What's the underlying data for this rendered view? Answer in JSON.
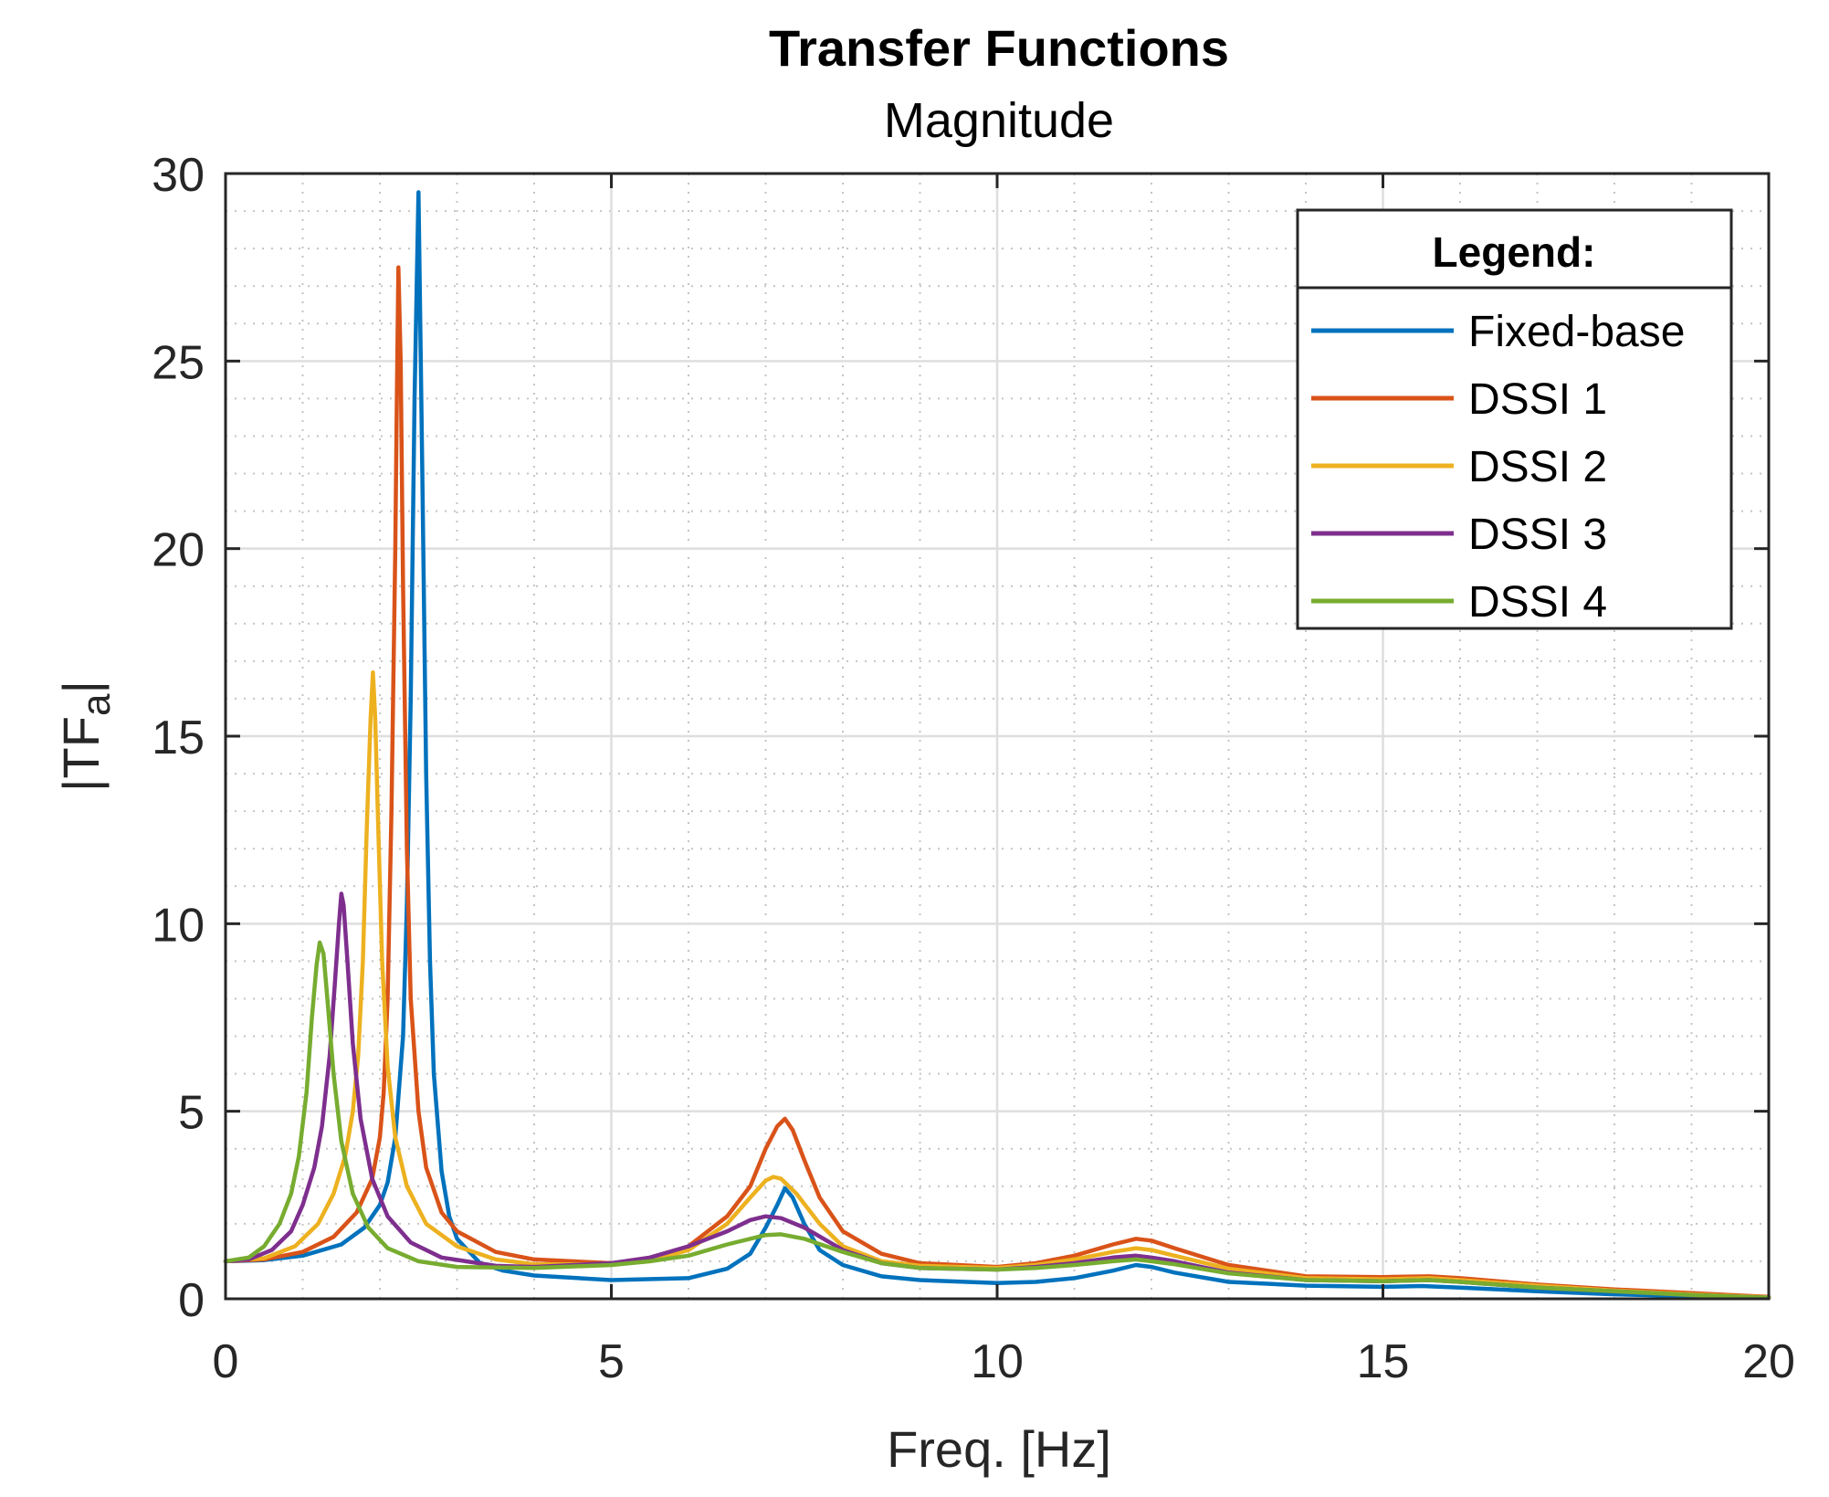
{
  "chart_data": {
    "type": "line",
    "title": "Transfer Functions",
    "subtitle": "Magnitude",
    "xlabel": "Freq. [Hz]",
    "ylabel": "|TF",
    "ylabel_subscript": "a",
    "ylabel_suffix": "|",
    "xlim": [
      0,
      20
    ],
    "ylim": [
      0,
      30
    ],
    "xticks": [
      0,
      5,
      10,
      15,
      20
    ],
    "xtick_labels": [
      "0",
      "5",
      "10",
      "15",
      "20"
    ],
    "yticks": [
      0,
      5,
      10,
      15,
      20,
      25,
      30
    ],
    "ytick_labels": [
      "0",
      "5",
      "10",
      "15",
      "20",
      "25",
      "30"
    ],
    "grid": true,
    "minor_grid": true,
    "legend": {
      "title": "Legend:",
      "placement": "top-right"
    },
    "series": [
      {
        "name": "Fixed-base",
        "color": "#0072BD",
        "points": [
          [
            0,
            1.0
          ],
          [
            0.5,
            1.03
          ],
          [
            1.0,
            1.15
          ],
          [
            1.5,
            1.45
          ],
          [
            1.8,
            1.9
          ],
          [
            2.0,
            2.5
          ],
          [
            2.1,
            3.1
          ],
          [
            2.2,
            4.3
          ],
          [
            2.3,
            7.0
          ],
          [
            2.35,
            10.5
          ],
          [
            2.4,
            16.0
          ],
          [
            2.45,
            24.0
          ],
          [
            2.5,
            29.5
          ],
          [
            2.55,
            22.0
          ],
          [
            2.6,
            14.0
          ],
          [
            2.65,
            9.0
          ],
          [
            2.7,
            6.0
          ],
          [
            2.8,
            3.4
          ],
          [
            2.9,
            2.2
          ],
          [
            3.0,
            1.6
          ],
          [
            3.3,
            0.95
          ],
          [
            3.6,
            0.75
          ],
          [
            4.0,
            0.62
          ],
          [
            5.0,
            0.5
          ],
          [
            6.0,
            0.55
          ],
          [
            6.5,
            0.8
          ],
          [
            6.8,
            1.2
          ],
          [
            7.0,
            1.9
          ],
          [
            7.15,
            2.5
          ],
          [
            7.25,
            2.95
          ],
          [
            7.35,
            2.7
          ],
          [
            7.5,
            2.0
          ],
          [
            7.7,
            1.3
          ],
          [
            8.0,
            0.9
          ],
          [
            8.5,
            0.6
          ],
          [
            9.0,
            0.5
          ],
          [
            10.0,
            0.42
          ],
          [
            10.5,
            0.45
          ],
          [
            11.0,
            0.55
          ],
          [
            11.5,
            0.75
          ],
          [
            11.8,
            0.9
          ],
          [
            12.0,
            0.85
          ],
          [
            12.3,
            0.7
          ],
          [
            13.0,
            0.45
          ],
          [
            14.0,
            0.35
          ],
          [
            15.0,
            0.32
          ],
          [
            15.5,
            0.34
          ],
          [
            16.0,
            0.3
          ],
          [
            17.0,
            0.2
          ],
          [
            18.0,
            0.12
          ],
          [
            19.0,
            0.07
          ],
          [
            20.0,
            0.03
          ]
        ]
      },
      {
        "name": "DSSI 1",
        "color": "#D95319",
        "points": [
          [
            0,
            1.0
          ],
          [
            0.5,
            1.05
          ],
          [
            1.0,
            1.25
          ],
          [
            1.4,
            1.65
          ],
          [
            1.7,
            2.3
          ],
          [
            1.9,
            3.2
          ],
          [
            2.0,
            4.3
          ],
          [
            2.05,
            5.5
          ],
          [
            2.1,
            8.0
          ],
          [
            2.15,
            13.0
          ],
          [
            2.2,
            20.0
          ],
          [
            2.22,
            24.0
          ],
          [
            2.24,
            27.5
          ],
          [
            2.27,
            25.0
          ],
          [
            2.3,
            19.0
          ],
          [
            2.35,
            12.0
          ],
          [
            2.4,
            8.0
          ],
          [
            2.5,
            5.0
          ],
          [
            2.6,
            3.5
          ],
          [
            2.8,
            2.3
          ],
          [
            3.0,
            1.8
          ],
          [
            3.5,
            1.25
          ],
          [
            4.0,
            1.05
          ],
          [
            5.0,
            0.95
          ],
          [
            5.5,
            1.05
          ],
          [
            6.0,
            1.4
          ],
          [
            6.5,
            2.2
          ],
          [
            6.8,
            3.0
          ],
          [
            7.0,
            4.0
          ],
          [
            7.15,
            4.6
          ],
          [
            7.25,
            4.8
          ],
          [
            7.35,
            4.5
          ],
          [
            7.5,
            3.7
          ],
          [
            7.7,
            2.7
          ],
          [
            8.0,
            1.8
          ],
          [
            8.5,
            1.2
          ],
          [
            9.0,
            0.95
          ],
          [
            10.0,
            0.85
          ],
          [
            10.5,
            0.95
          ],
          [
            11.0,
            1.15
          ],
          [
            11.5,
            1.45
          ],
          [
            11.8,
            1.6
          ],
          [
            12.0,
            1.55
          ],
          [
            12.3,
            1.35
          ],
          [
            13.0,
            0.9
          ],
          [
            14.0,
            0.6
          ],
          [
            15.0,
            0.58
          ],
          [
            15.6,
            0.6
          ],
          [
            16.0,
            0.55
          ],
          [
            17.0,
            0.38
          ],
          [
            18.0,
            0.25
          ],
          [
            19.0,
            0.15
          ],
          [
            20.0,
            0.05
          ]
        ]
      },
      {
        "name": "DSSI 2",
        "color": "#EDB120",
        "points": [
          [
            0,
            1.0
          ],
          [
            0.5,
            1.08
          ],
          [
            0.9,
            1.4
          ],
          [
            1.2,
            2.0
          ],
          [
            1.4,
            2.8
          ],
          [
            1.55,
            3.8
          ],
          [
            1.65,
            5.0
          ],
          [
            1.72,
            6.5
          ],
          [
            1.78,
            9.0
          ],
          [
            1.83,
            12.5
          ],
          [
            1.88,
            15.5
          ],
          [
            1.91,
            16.7
          ],
          [
            1.94,
            15.5
          ],
          [
            1.98,
            12.5
          ],
          [
            2.03,
            9.0
          ],
          [
            2.1,
            6.2
          ],
          [
            2.2,
            4.3
          ],
          [
            2.35,
            3.0
          ],
          [
            2.6,
            2.0
          ],
          [
            3.0,
            1.4
          ],
          [
            3.5,
            1.05
          ],
          [
            4.0,
            0.92
          ],
          [
            5.0,
            0.92
          ],
          [
            5.5,
            1.0
          ],
          [
            6.0,
            1.3
          ],
          [
            6.5,
            2.0
          ],
          [
            6.8,
            2.7
          ],
          [
            7.0,
            3.15
          ],
          [
            7.1,
            3.25
          ],
          [
            7.2,
            3.2
          ],
          [
            7.4,
            2.8
          ],
          [
            7.7,
            2.0
          ],
          [
            8.0,
            1.4
          ],
          [
            8.5,
            1.0
          ],
          [
            9.0,
            0.88
          ],
          [
            10.0,
            0.82
          ],
          [
            10.5,
            0.9
          ],
          [
            11.0,
            1.05
          ],
          [
            11.5,
            1.25
          ],
          [
            11.8,
            1.35
          ],
          [
            12.0,
            1.3
          ],
          [
            12.3,
            1.15
          ],
          [
            13.0,
            0.8
          ],
          [
            14.0,
            0.55
          ],
          [
            15.0,
            0.52
          ],
          [
            15.6,
            0.55
          ],
          [
            16.0,
            0.5
          ],
          [
            17.0,
            0.35
          ],
          [
            18.0,
            0.22
          ],
          [
            19.0,
            0.12
          ],
          [
            20.0,
            0.04
          ]
        ]
      },
      {
        "name": "DSSI 3",
        "color": "#7E2F8E",
        "points": [
          [
            0,
            1.0
          ],
          [
            0.3,
            1.05
          ],
          [
            0.6,
            1.3
          ],
          [
            0.85,
            1.8
          ],
          [
            1.0,
            2.5
          ],
          [
            1.15,
            3.5
          ],
          [
            1.25,
            4.6
          ],
          [
            1.35,
            6.5
          ],
          [
            1.42,
            8.5
          ],
          [
            1.47,
            10.0
          ],
          [
            1.5,
            10.8
          ],
          [
            1.53,
            10.5
          ],
          [
            1.58,
            9.0
          ],
          [
            1.65,
            6.8
          ],
          [
            1.75,
            4.8
          ],
          [
            1.9,
            3.2
          ],
          [
            2.1,
            2.2
          ],
          [
            2.4,
            1.5
          ],
          [
            2.8,
            1.1
          ],
          [
            3.5,
            0.88
          ],
          [
            4.0,
            0.85
          ],
          [
            5.0,
            0.95
          ],
          [
            5.5,
            1.1
          ],
          [
            6.0,
            1.4
          ],
          [
            6.5,
            1.8
          ],
          [
            6.8,
            2.1
          ],
          [
            7.0,
            2.2
          ],
          [
            7.2,
            2.15
          ],
          [
            7.5,
            1.9
          ],
          [
            8.0,
            1.3
          ],
          [
            8.5,
            0.95
          ],
          [
            9.0,
            0.82
          ],
          [
            10.0,
            0.78
          ],
          [
            10.5,
            0.85
          ],
          [
            11.0,
            0.95
          ],
          [
            11.5,
            1.1
          ],
          [
            11.8,
            1.15
          ],
          [
            12.0,
            1.1
          ],
          [
            12.3,
            1.0
          ],
          [
            13.0,
            0.7
          ],
          [
            14.0,
            0.5
          ],
          [
            15.0,
            0.47
          ],
          [
            15.6,
            0.5
          ],
          [
            16.0,
            0.45
          ],
          [
            17.0,
            0.3
          ],
          [
            18.0,
            0.2
          ],
          [
            19.0,
            0.1
          ],
          [
            20.0,
            0.03
          ]
        ]
      },
      {
        "name": "DSSI 4",
        "color": "#77AC30",
        "points": [
          [
            0,
            1.0
          ],
          [
            0.3,
            1.1
          ],
          [
            0.5,
            1.4
          ],
          [
            0.7,
            2.0
          ],
          [
            0.85,
            2.8
          ],
          [
            0.95,
            3.8
          ],
          [
            1.05,
            5.5
          ],
          [
            1.12,
            7.5
          ],
          [
            1.18,
            8.9
          ],
          [
            1.22,
            9.5
          ],
          [
            1.27,
            9.2
          ],
          [
            1.32,
            8.0
          ],
          [
            1.4,
            6.0
          ],
          [
            1.5,
            4.2
          ],
          [
            1.65,
            2.8
          ],
          [
            1.85,
            1.9
          ],
          [
            2.1,
            1.35
          ],
          [
            2.5,
            1.0
          ],
          [
            3.0,
            0.85
          ],
          [
            4.0,
            0.82
          ],
          [
            5.0,
            0.9
          ],
          [
            5.5,
            1.0
          ],
          [
            6.0,
            1.15
          ],
          [
            6.5,
            1.45
          ],
          [
            7.0,
            1.7
          ],
          [
            7.2,
            1.72
          ],
          [
            7.5,
            1.6
          ],
          [
            8.0,
            1.25
          ],
          [
            8.5,
            0.95
          ],
          [
            9.0,
            0.82
          ],
          [
            10.0,
            0.78
          ],
          [
            10.5,
            0.82
          ],
          [
            11.0,
            0.9
          ],
          [
            11.5,
            1.0
          ],
          [
            11.8,
            1.05
          ],
          [
            12.0,
            1.0
          ],
          [
            12.3,
            0.92
          ],
          [
            13.0,
            0.68
          ],
          [
            14.0,
            0.5
          ],
          [
            15.0,
            0.47
          ],
          [
            15.6,
            0.5
          ],
          [
            16.0,
            0.45
          ],
          [
            17.0,
            0.3
          ],
          [
            18.0,
            0.2
          ],
          [
            19.0,
            0.1
          ],
          [
            20.0,
            0.03
          ]
        ]
      }
    ]
  }
}
